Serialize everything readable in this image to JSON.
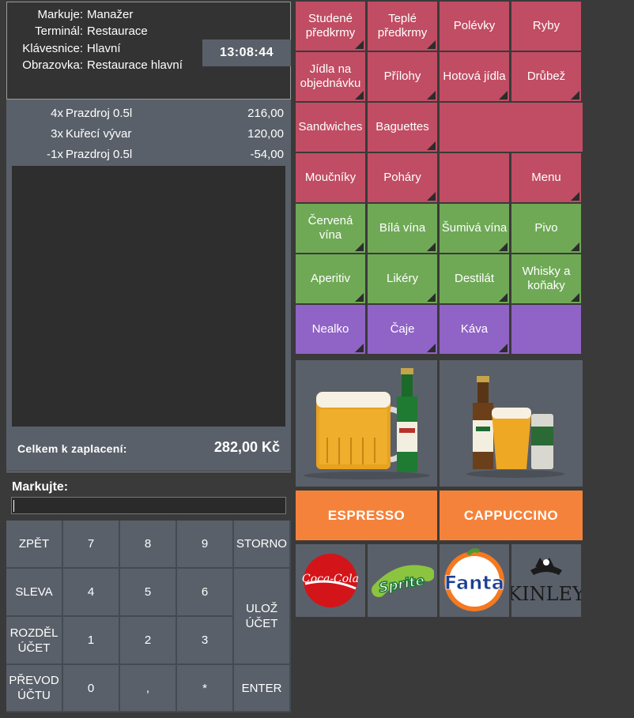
{
  "info": {
    "rows": [
      {
        "label": "Markuje:",
        "value": "Manažer"
      },
      {
        "label": "Terminál:",
        "value": "Restaurace"
      },
      {
        "label": "Klávesnice:",
        "value": "Hlavní"
      },
      {
        "label": "Obrazovka:",
        "value": "Restaurace hlavní"
      }
    ],
    "clock": "13:08:44"
  },
  "order": {
    "lines": [
      {
        "qty": "4x",
        "name": "Prazdroj 0.5l",
        "price": "216,00"
      },
      {
        "qty": "3x",
        "name": "Kuřecí vývar",
        "price": "120,00"
      },
      {
        "qty": "-1x",
        "name": "Prazdroj 0.5l",
        "price": "-54,00"
      }
    ],
    "total_label": "Celkem k zaplacení:",
    "total_value": "282,00 Kč"
  },
  "input": {
    "label": "Markujte:",
    "value": ""
  },
  "keypad": {
    "zpet": "ZPĚT",
    "k7": "7",
    "k8": "8",
    "k9": "9",
    "storno": "STORNO",
    "sleva": "SLEVA",
    "k4": "4",
    "k5": "5",
    "k6": "6",
    "uloz_l1": "ULOŽ",
    "uloz_l2": "ÚČET",
    "rozdel_l1": "ROZDĚL",
    "rozdel_l2": "ÚČET",
    "k1": "1",
    "k2": "2",
    "k3": "3",
    "prevod_l1": "PŘEVOD",
    "prevod_l2": "ÚČTU",
    "k0": "0",
    "comma": ",",
    "star": "*",
    "enter": "ENTER"
  },
  "categories": {
    "studene_l1": "Studené",
    "studene_l2": "předkrmy",
    "teple_l1": "Teplé",
    "teple_l2": "předkrmy",
    "polevky": "Polévky",
    "ryby": "Ryby",
    "jidla_l1": "Jídla na",
    "jidla_l2": "objednávku",
    "prilohy": "Přílohy",
    "hotova": "Hotová jídla",
    "drubez": "Drůbež",
    "sandwiches": "Sandwiches",
    "baguettes": "Baguettes",
    "moucniky": "Moučníky",
    "pohary": "Poháry",
    "menu": "Menu",
    "cervena_l1": "Červená",
    "cervena_l2": "vína",
    "bila": "Bílá vína",
    "sumiva": "Šumivá vína",
    "pivo": "Pivo",
    "aperitiv": "Aperitiv",
    "likery": "Likéry",
    "destilat": "Destilát",
    "whisky_l1": "Whisky a",
    "whisky_l2": "koňaky",
    "nealko": "Nealko",
    "caje": "Čaje",
    "kava": "Káva"
  },
  "quick": {
    "espresso": "ESPRESSO",
    "cappuccino": "CAPPUCCINO",
    "coca_cola_logo": "Coca-Cola",
    "sprite_logo": "Sprite",
    "fanta_logo": "Fanta",
    "kinley_logo": "KINLEY"
  },
  "colors": {
    "category_food": "#c04d63",
    "category_drinks": "#6fa956",
    "category_hot": "#9063c6",
    "quick_coffee": "#f5823a",
    "panel": "#5a6069"
  }
}
